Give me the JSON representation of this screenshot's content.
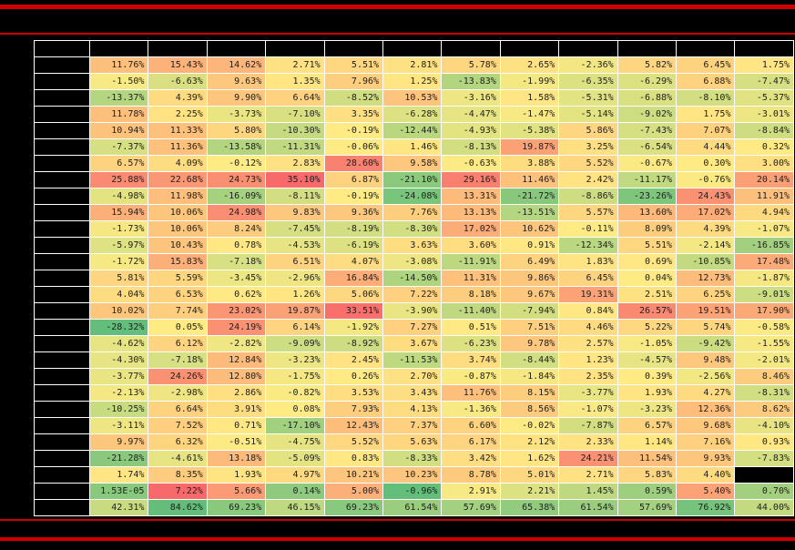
{
  "page": {
    "background": "#000000",
    "divider_color": "#d00000",
    "redactions": {
      "title": "blacked out",
      "column_headers": "blacked out",
      "row_labels": "blacked out"
    }
  },
  "chart_data": {
    "type": "heatmap",
    "column_count": 12,
    "row_count": 28,
    "palette": {
      "low_green": "#63BE7B",
      "mid_yellow": "#FFEB84",
      "high_red": "#F8696B"
    },
    "scale": {
      "min": -28.32,
      "mid": 0,
      "max": 35.1,
      "direction": "high=red, low=green"
    },
    "body_rows": [
      [
        "11.76%",
        "15.43%",
        "14.62%",
        "2.71%",
        "5.51%",
        "2.81%",
        "5.78%",
        "2.65%",
        "-2.36%",
        "5.82%",
        "6.45%",
        "1.75%"
      ],
      [
        "-1.50%",
        "-6.63%",
        "9.63%",
        "1.35%",
        "7.96%",
        "1.25%",
        "-13.83%",
        "-1.99%",
        "-6.35%",
        "-6.29%",
        "6.88%",
        "-7.47%"
      ],
      [
        "-13.37%",
        "4.39%",
        "9.90%",
        "6.64%",
        "-8.52%",
        "10.53%",
        "-3.16%",
        "1.58%",
        "-5.31%",
        "-6.88%",
        "-8.10%",
        "-5.37%"
      ],
      [
        "11.78%",
        "2.25%",
        "-3.73%",
        "-7.10%",
        "3.35%",
        "-6.28%",
        "-4.47%",
        "-1.47%",
        "-5.14%",
        "-9.02%",
        "1.75%",
        "-3.01%"
      ],
      [
        "10.94%",
        "11.33%",
        "5.80%",
        "-10.30%",
        "-0.19%",
        "-12.44%",
        "-4.93%",
        "-5.38%",
        "5.86%",
        "-7.43%",
        "7.07%",
        "-8.84%"
      ],
      [
        "-7.37%",
        "11.36%",
        "-13.58%",
        "-11.31%",
        "-0.06%",
        "1.46%",
        "-8.13%",
        "19.87%",
        "3.25%",
        "-6.54%",
        "4.44%",
        "0.32%"
      ],
      [
        "6.57%",
        "4.09%",
        "-0.12%",
        "2.83%",
        "28.60%",
        "9.58%",
        "-0.63%",
        "3.88%",
        "5.52%",
        "-0.67%",
        "0.30%",
        "3.00%"
      ],
      [
        "25.88%",
        "22.68%",
        "24.73%",
        "35.10%",
        "6.87%",
        "-21.10%",
        "29.16%",
        "11.46%",
        "2.42%",
        "-11.17%",
        "-0.76%",
        "20.14%"
      ],
      [
        "-4.98%",
        "11.98%",
        "-16.09%",
        "-8.11%",
        "-0.19%",
        "-24.08%",
        "13.31%",
        "-21.72%",
        "-8.86%",
        "-23.26%",
        "24.43%",
        "11.91%"
      ],
      [
        "15.94%",
        "10.06%",
        "24.98%",
        "9.83%",
        "9.36%",
        "7.76%",
        "13.13%",
        "-13.51%",
        "5.57%",
        "13.60%",
        "17.02%",
        "4.94%"
      ],
      [
        "-1.73%",
        "10.06%",
        "8.24%",
        "-7.45%",
        "-8.19%",
        "-8.30%",
        "17.02%",
        "10.62%",
        "-0.11%",
        "8.09%",
        "4.39%",
        "-1.07%"
      ],
      [
        "-5.97%",
        "10.43%",
        "0.78%",
        "-4.53%",
        "-6.19%",
        "3.63%",
        "3.60%",
        "0.91%",
        "-12.34%",
        "5.51%",
        "-2.14%",
        "-16.85%"
      ],
      [
        "-1.72%",
        "15.83%",
        "-7.18%",
        "6.51%",
        "4.07%",
        "-3.08%",
        "-11.91%",
        "6.49%",
        "1.83%",
        "0.69%",
        "-10.85%",
        "17.48%"
      ],
      [
        "5.81%",
        "5.59%",
        "-3.45%",
        "-2.96%",
        "16.84%",
        "-14.50%",
        "11.31%",
        "9.86%",
        "6.45%",
        "0.04%",
        "12.73%",
        "-1.87%"
      ],
      [
        "4.04%",
        "6.53%",
        "0.62%",
        "1.26%",
        "5.06%",
        "7.22%",
        "8.18%",
        "9.67%",
        "19.31%",
        "2.51%",
        "6.25%",
        "-9.01%"
      ],
      [
        "10.02%",
        "7.74%",
        "23.02%",
        "19.87%",
        "33.51%",
        "-3.90%",
        "-11.40%",
        "-7.94%",
        "0.84%",
        "26.57%",
        "19.51%",
        "17.90%"
      ],
      [
        "-28.32%",
        "0.05%",
        "24.19%",
        "6.14%",
        "-1.92%",
        "7.27%",
        "0.51%",
        "7.51%",
        "4.46%",
        "5.22%",
        "5.74%",
        "-0.58%"
      ],
      [
        "-4.62%",
        "6.12%",
        "-2.82%",
        "-9.09%",
        "-8.92%",
        "3.67%",
        "-6.23%",
        "9.78%",
        "2.57%",
        "-1.05%",
        "-9.42%",
        "-1.55%"
      ],
      [
        "-4.30%",
        "-7.18%",
        "12.84%",
        "-3.23%",
        "2.45%",
        "-11.53%",
        "3.74%",
        "-8.44%",
        "1.23%",
        "-4.57%",
        "9.48%",
        "-2.01%"
      ],
      [
        "-3.77%",
        "24.26%",
        "12.80%",
        "-1.75%",
        "0.26%",
        "2.70%",
        "-0.87%",
        "-1.84%",
        "2.35%",
        "0.39%",
        "-2.56%",
        "8.46%"
      ],
      [
        "-2.13%",
        "-2.98%",
        "2.86%",
        "-0.82%",
        "3.53%",
        "3.43%",
        "11.76%",
        "8.15%",
        "-3.77%",
        "1.93%",
        "4.27%",
        "-8.31%"
      ],
      [
        "-10.25%",
        "6.64%",
        "3.91%",
        "0.08%",
        "7.93%",
        "4.13%",
        "-1.36%",
        "8.56%",
        "-1.07%",
        "-3.23%",
        "12.36%",
        "8.62%"
      ],
      [
        "-3.11%",
        "7.52%",
        "0.71%",
        "-17.10%",
        "12.43%",
        "7.37%",
        "6.60%",
        "-0.02%",
        "-7.87%",
        "6.57%",
        "9.68%",
        "-4.10%"
      ],
      [
        "9.97%",
        "6.32%",
        "-0.51%",
        "-4.75%",
        "5.52%",
        "5.63%",
        "6.17%",
        "2.12%",
        "2.33%",
        "1.14%",
        "7.16%",
        "0.93%"
      ],
      [
        "-21.28%",
        "-4.61%",
        "13.18%",
        "-5.09%",
        "0.83%",
        "-8.33%",
        "3.42%",
        "1.62%",
        "24.21%",
        "11.54%",
        "9.93%",
        "-7.83%"
      ],
      [
        "1.74%",
        "8.35%",
        "1.93%",
        "4.97%",
        "10.21%",
        "10.23%",
        "8.78%",
        "5.01%",
        "2.71%",
        "5.83%",
        "4.40%",
        null
      ]
    ],
    "footer_row_avg": [
      "1.53E-05",
      "7.22%",
      "5.66%",
      "0.14%",
      "5.00%",
      "-0.96%",
      "2.91%",
      "2.21%",
      "1.45%",
      "0.59%",
      "5.40%",
      "0.70%"
    ],
    "footer_row_pct": [
      "42.31%",
      "84.62%",
      "69.23%",
      "46.15%",
      "69.23%",
      "61.54%",
      "57.69%",
      "65.38%",
      "61.54%",
      "57.69%",
      "76.92%",
      "44.00%"
    ]
  }
}
